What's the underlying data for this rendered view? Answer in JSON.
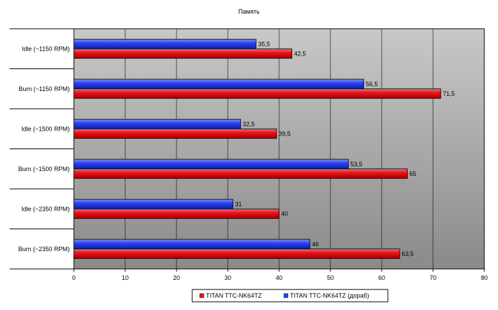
{
  "colors": {
    "series_a": "#e8151b",
    "series_b": "#2b45ec",
    "plot_bg_top": "#c8c8c8",
    "plot_bg_bottom": "#8a8a8a",
    "grid": "#000000"
  },
  "chart_data": {
    "type": "bar",
    "orientation": "horizontal",
    "title": "Память",
    "categories": [
      "Idle (~1150 RPM)",
      "Burn (~1150 RPM)",
      "Idle (~1500 RPM)",
      "Burn (~1500 RPM)",
      "Idle (~2350 RPM)",
      "Burn (~2350 RPM)"
    ],
    "series": [
      {
        "name": "TITAN TTC-NK64TZ (дораб)",
        "values": [
          35.5,
          56.5,
          32.5,
          53.5,
          31,
          46
        ],
        "labels": [
          "35,5",
          "56,5",
          "32,5",
          "53,5",
          "31",
          "46"
        ]
      },
      {
        "name": "TITAN TTC-NK64TZ",
        "values": [
          42.5,
          71.5,
          39.5,
          65,
          40,
          63.5
        ],
        "labels": [
          "42,5",
          "71,5",
          "39,5",
          "65",
          "40",
          "63,5"
        ]
      }
    ],
    "xlim": [
      0,
      80
    ],
    "ticks": [
      "0",
      "10",
      "20",
      "30",
      "40",
      "50",
      "60",
      "70",
      "80"
    ],
    "grid": true,
    "legend": {
      "position": "bottom-right",
      "entries": [
        "TITAN TTC-NK64TZ",
        "TITAN TTC-NK64TZ (дораб)"
      ]
    }
  }
}
